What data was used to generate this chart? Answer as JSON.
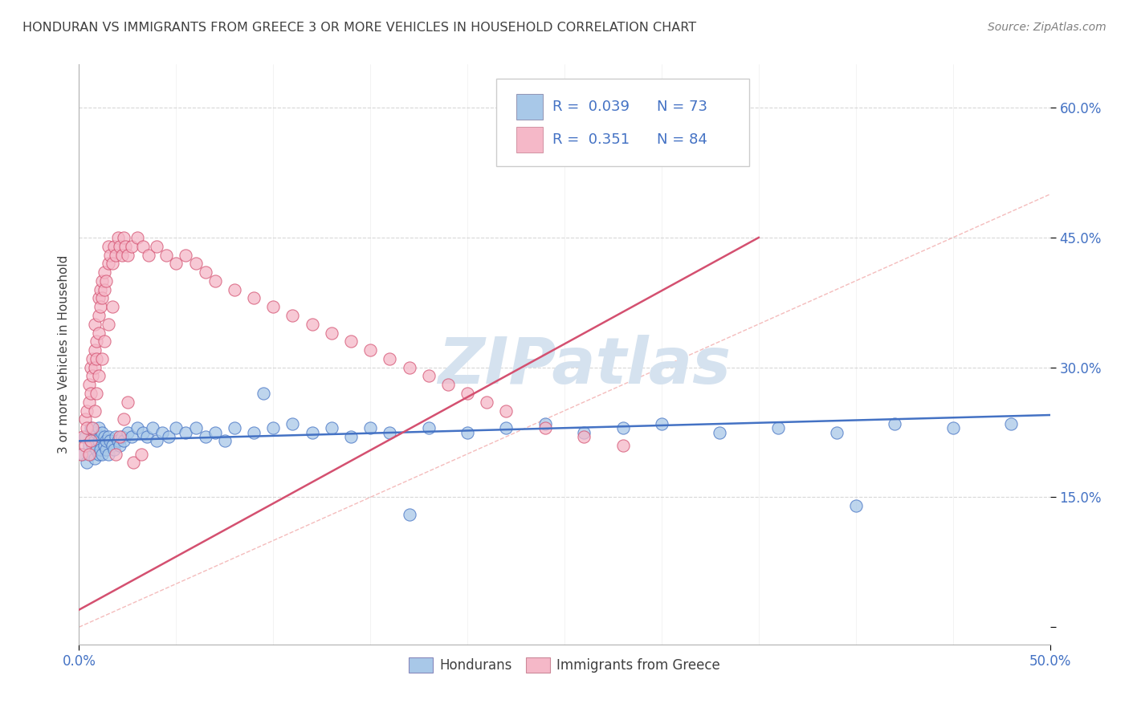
{
  "title": "HONDURAN VS IMMIGRANTS FROM GREECE 3 OR MORE VEHICLES IN HOUSEHOLD CORRELATION CHART",
  "source": "Source: ZipAtlas.com",
  "ylabel": "3 or more Vehicles in Household",
  "xlim": [
    0.0,
    0.5
  ],
  "ylim": [
    -0.02,
    0.65
  ],
  "legend1_label": "Hondurans",
  "legend2_label": "Immigrants from Greece",
  "R_honduran": 0.039,
  "N_honduran": 73,
  "R_greece": 0.351,
  "N_greece": 84,
  "color_honduran": "#a8c8e8",
  "color_greece": "#f5b8c8",
  "line_color_honduran": "#4472c4",
  "line_color_greece": "#d45070",
  "ref_line_color": "#e8a0a8",
  "watermark_color": "#d5e2ef",
  "title_color": "#404040",
  "axis_label_color": "#4472c4",
  "background_color": "#ffffff",
  "grid_color": "#c8c8c8",
  "honduran_x": [
    0.002,
    0.003,
    0.004,
    0.005,
    0.006,
    0.006,
    0.007,
    0.007,
    0.008,
    0.008,
    0.009,
    0.009,
    0.01,
    0.01,
    0.01,
    0.011,
    0.011,
    0.012,
    0.012,
    0.013,
    0.013,
    0.014,
    0.014,
    0.015,
    0.015,
    0.016,
    0.017,
    0.018,
    0.019,
    0.02,
    0.021,
    0.022,
    0.023,
    0.025,
    0.027,
    0.03,
    0.033,
    0.035,
    0.038,
    0.04,
    0.043,
    0.046,
    0.05,
    0.055,
    0.06,
    0.065,
    0.07,
    0.075,
    0.08,
    0.09,
    0.1,
    0.11,
    0.12,
    0.13,
    0.14,
    0.15,
    0.16,
    0.18,
    0.2,
    0.22,
    0.24,
    0.26,
    0.28,
    0.3,
    0.33,
    0.36,
    0.39,
    0.42,
    0.45,
    0.48,
    0.095,
    0.17,
    0.4
  ],
  "honduran_y": [
    0.2,
    0.22,
    0.19,
    0.21,
    0.23,
    0.2,
    0.21,
    0.22,
    0.195,
    0.215,
    0.205,
    0.225,
    0.2,
    0.215,
    0.23,
    0.205,
    0.22,
    0.2,
    0.225,
    0.21,
    0.22,
    0.205,
    0.215,
    0.2,
    0.22,
    0.215,
    0.21,
    0.205,
    0.22,
    0.215,
    0.21,
    0.22,
    0.215,
    0.225,
    0.22,
    0.23,
    0.225,
    0.22,
    0.23,
    0.215,
    0.225,
    0.22,
    0.23,
    0.225,
    0.23,
    0.22,
    0.225,
    0.215,
    0.23,
    0.225,
    0.23,
    0.235,
    0.225,
    0.23,
    0.22,
    0.23,
    0.225,
    0.23,
    0.225,
    0.23,
    0.235,
    0.225,
    0.23,
    0.235,
    0.225,
    0.23,
    0.225,
    0.235,
    0.23,
    0.235,
    0.27,
    0.13,
    0.14
  ],
  "greece_x": [
    0.001,
    0.002,
    0.003,
    0.003,
    0.004,
    0.004,
    0.005,
    0.005,
    0.006,
    0.006,
    0.007,
    0.007,
    0.008,
    0.008,
    0.008,
    0.009,
    0.009,
    0.01,
    0.01,
    0.01,
    0.011,
    0.011,
    0.012,
    0.012,
    0.013,
    0.013,
    0.014,
    0.015,
    0.015,
    0.016,
    0.017,
    0.018,
    0.019,
    0.02,
    0.021,
    0.022,
    0.023,
    0.024,
    0.025,
    0.027,
    0.03,
    0.033,
    0.036,
    0.04,
    0.045,
    0.05,
    0.055,
    0.06,
    0.065,
    0.07,
    0.08,
    0.09,
    0.1,
    0.11,
    0.12,
    0.13,
    0.14,
    0.15,
    0.16,
    0.17,
    0.18,
    0.19,
    0.2,
    0.21,
    0.22,
    0.24,
    0.26,
    0.28,
    0.005,
    0.006,
    0.007,
    0.008,
    0.009,
    0.01,
    0.012,
    0.013,
    0.015,
    0.017,
    0.019,
    0.021,
    0.023,
    0.025,
    0.028,
    0.032
  ],
  "greece_y": [
    0.2,
    0.22,
    0.21,
    0.24,
    0.23,
    0.25,
    0.26,
    0.28,
    0.27,
    0.3,
    0.29,
    0.31,
    0.3,
    0.32,
    0.35,
    0.31,
    0.33,
    0.34,
    0.36,
    0.38,
    0.37,
    0.39,
    0.38,
    0.4,
    0.39,
    0.41,
    0.4,
    0.42,
    0.44,
    0.43,
    0.42,
    0.44,
    0.43,
    0.45,
    0.44,
    0.43,
    0.45,
    0.44,
    0.43,
    0.44,
    0.45,
    0.44,
    0.43,
    0.44,
    0.43,
    0.42,
    0.43,
    0.42,
    0.41,
    0.4,
    0.39,
    0.38,
    0.37,
    0.36,
    0.35,
    0.34,
    0.33,
    0.32,
    0.31,
    0.3,
    0.29,
    0.28,
    0.27,
    0.26,
    0.25,
    0.23,
    0.22,
    0.21,
    0.2,
    0.215,
    0.23,
    0.25,
    0.27,
    0.29,
    0.31,
    0.33,
    0.35,
    0.37,
    0.2,
    0.22,
    0.24,
    0.26,
    0.19,
    0.2
  ]
}
